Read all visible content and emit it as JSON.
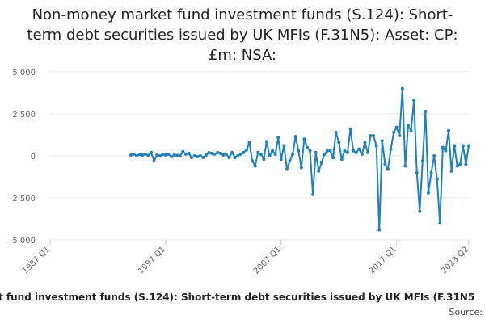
{
  "chart_data": {
    "type": "line",
    "title": "Non-money market fund investment funds (S.124): Short-term debt securities issued by UK MFIs (F.31N5): Asset: CP: £m: NSA:",
    "caption": "t fund investment funds (S.124): Short-term debt securities issued by UK MFIs (F.31N5",
    "source": "Source:",
    "color": "#1f80c0",
    "grid": true,
    "xlim": [
      "1987 Q1",
      "2023 Q2"
    ],
    "xticks": [
      "1987 Q1",
      "1997 Q1",
      "2007 Q1",
      "2017 Q1",
      "2023 Q2"
    ],
    "ylim": [
      -5000,
      5000
    ],
    "yticks": [
      {
        "value": 5000,
        "label": "5 000"
      },
      {
        "value": 2500,
        "label": "2 500"
      },
      0,
      {
        "value": -2500,
        "label": "-2 500"
      },
      {
        "value": -5000,
        "label": "-5 000"
      }
    ],
    "x": [
      "1994 Q1",
      "1994 Q2",
      "1994 Q3",
      "1994 Q4",
      "1995 Q1",
      "1995 Q2",
      "1995 Q3",
      "1995 Q4",
      "1996 Q1",
      "1996 Q2",
      "1996 Q3",
      "1996 Q4",
      "1997 Q1",
      "1997 Q2",
      "1997 Q3",
      "1997 Q4",
      "1998 Q1",
      "1998 Q2",
      "1998 Q3",
      "1998 Q4",
      "1999 Q1",
      "1999 Q2",
      "1999 Q3",
      "1999 Q4",
      "2000 Q1",
      "2000 Q2",
      "2000 Q3",
      "2000 Q4",
      "2001 Q1",
      "2001 Q2",
      "2001 Q3",
      "2001 Q4",
      "2002 Q1",
      "2002 Q2",
      "2002 Q3",
      "2002 Q4",
      "2003 Q1",
      "2003 Q2",
      "2003 Q3",
      "2003 Q4",
      "2004 Q1",
      "2004 Q2",
      "2004 Q3",
      "2004 Q4",
      "2005 Q1",
      "2005 Q2",
      "2005 Q3",
      "2005 Q4",
      "2006 Q1",
      "2006 Q2",
      "2006 Q3",
      "2006 Q4",
      "2007 Q1",
      "2007 Q2",
      "2007 Q3",
      "2007 Q4",
      "2008 Q1",
      "2008 Q2",
      "2008 Q3",
      "2008 Q4",
      "2009 Q1",
      "2009 Q2",
      "2009 Q3",
      "2009 Q4",
      "2010 Q1",
      "2010 Q2",
      "2010 Q3",
      "2010 Q4",
      "2011 Q1",
      "2011 Q2",
      "2011 Q3",
      "2011 Q4",
      "2012 Q1",
      "2012 Q2",
      "2012 Q3",
      "2012 Q4",
      "2013 Q1",
      "2013 Q2",
      "2013 Q3",
      "2013 Q4",
      "2014 Q1",
      "2014 Q2",
      "2014 Q3",
      "2014 Q4",
      "2015 Q1",
      "2015 Q2",
      "2015 Q3",
      "2015 Q4",
      "2016 Q1",
      "2016 Q2",
      "2016 Q3",
      "2016 Q4",
      "2017 Q1",
      "2017 Q2",
      "2017 Q3",
      "2017 Q4",
      "2018 Q1",
      "2018 Q2",
      "2018 Q3",
      "2018 Q4",
      "2019 Q1",
      "2019 Q2",
      "2019 Q3",
      "2019 Q4",
      "2020 Q1",
      "2020 Q2",
      "2020 Q3",
      "2020 Q4",
      "2021 Q1",
      "2021 Q2",
      "2021 Q3",
      "2021 Q4",
      "2022 Q1",
      "2022 Q2",
      "2022 Q3",
      "2022 Q4",
      "2023 Q1",
      "2023 Q2"
    ],
    "values": [
      50,
      100,
      0,
      80,
      50,
      100,
      20,
      200,
      -300,
      50,
      0,
      80,
      50,
      100,
      -50,
      50,
      30,
      0,
      250,
      100,
      150,
      -100,
      0,
      -50,
      0,
      -100,
      50,
      200,
      150,
      100,
      200,
      150,
      50,
      100,
      -100,
      200,
      -100,
      0,
      100,
      200,
      350,
      800,
      -300,
      -600,
      200,
      100,
      -200,
      850,
      0,
      300,
      100,
      1100,
      -200,
      600,
      -800,
      -300,
      100,
      1150,
      300,
      -700,
      1000,
      500,
      300,
      -2300,
      200,
      -900,
      -400,
      100,
      300,
      300,
      -100,
      1400,
      800,
      -200,
      300,
      200,
      1600,
      300,
      200,
      400,
      100,
      800,
      200,
      1200,
      1200,
      600,
      -4400,
      900,
      -500,
      -800,
      400,
      1400,
      1700,
      1200,
      4000,
      -600,
      1800,
      1500,
      3300,
      -1000,
      -3300,
      -300,
      2650,
      -2200,
      -1000,
      0,
      -1400,
      -4000,
      500,
      300,
      1500,
      -900,
      600,
      -600,
      -500,
      600,
      -500,
      600
    ]
  }
}
